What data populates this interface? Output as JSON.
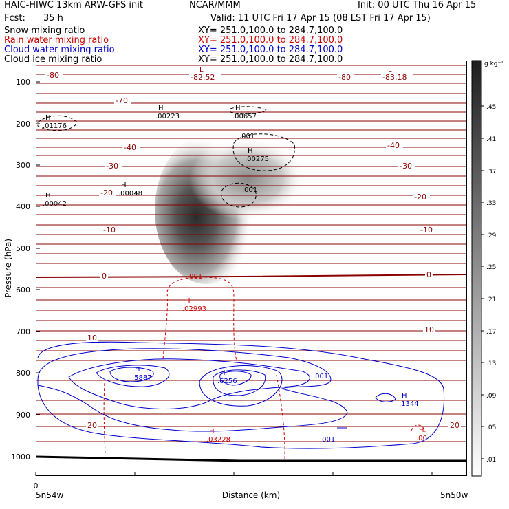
{
  "header": {
    "model": "HAIC-HIWC 13km ARW-GFS init",
    "org": "NCAR/MMM",
    "init": "Init: 00 UTC Thu 16 Apr 15",
    "fcst_label": "Fcst:",
    "fcst_value": "35 h",
    "valid": "Valid: 11 UTC Fri 17 Apr 15 (08 LST Fri 17 Apr 15)",
    "fields": [
      {
        "name": "Snow mixing ratio",
        "xy": "XY= 251.0,100.0 to 284.7,100.0",
        "color": "#000000"
      },
      {
        "name": "Rain water mixing ratio",
        "xy": "XY= 251.0,100.0 to 284.7,100.0",
        "color": "#cc0000"
      },
      {
        "name": "Cloud water mixing ratio",
        "xy": "XY= 251.0,100.0 to 284.7,100.0",
        "color": "#0000cc"
      },
      {
        "name": "Cloud ice mixing ratio",
        "xy": "XY= 251.0,100.0 to 284.7,100.0",
        "color": "#000000"
      }
    ]
  },
  "chart_data": {
    "type": "contour cross-section",
    "ylabel": "Pressure (hPa)",
    "xlabel": "Distance (km)",
    "x_left_label": "5n54w",
    "x_right_label": "5n50w",
    "x_zero_label": "0",
    "yticks": [
      "100",
      "200",
      "300",
      "400",
      "500",
      "600",
      "700",
      "800",
      "900",
      "1000"
    ],
    "colorbar_unit": "g kg⁻¹",
    "colorbar_labels": [
      ".45",
      ".41",
      ".37",
      ".33",
      ".29",
      ".25",
      ".21",
      ".17",
      ".13",
      ".09",
      ".05",
      ".01"
    ],
    "temperature_labels": [
      "-80",
      "-82.52",
      "-80",
      "-83.18",
      "-70",
      "-40",
      "-40",
      "-30",
      "-30",
      "-20",
      "-20",
      "-10",
      "-10",
      "0",
      "0",
      "10",
      "10",
      "20",
      "20"
    ],
    "maxima": [
      {
        "letter": "H",
        "value": ".01176",
        "color": "#000000"
      },
      {
        "letter": "H",
        "value": ".00223",
        "color": "#000000"
      },
      {
        "letter": "H",
        "value": ".00657",
        "color": "#000000"
      },
      {
        "letter": "H",
        "value": ".00275",
        "color": "#000000"
      },
      {
        "letter": "H",
        "value": ".00048",
        "color": "#000000"
      },
      {
        "letter": "H",
        "value": ".00042",
        "color": "#000000"
      },
      {
        "letter": "H",
        "value": ".02993",
        "color": "#cc0000"
      },
      {
        "letter": "H",
        "value": ".5887",
        "color": "#0000cc"
      },
      {
        "letter": "H",
        "value": ".6256",
        "color": "#0000cc"
      },
      {
        "letter": "H",
        "value": ".1344",
        "color": "#0000cc"
      },
      {
        "letter": "H",
        "value": ".03228",
        "color": "#cc0000"
      },
      {
        "letter": "H",
        "value": ".00",
        "color": "#cc0000"
      },
      {
        "letter": "L",
        "value": "",
        "color": "#8b0000"
      },
      {
        "letter": "L",
        "value": "",
        "color": "#8b0000"
      }
    ],
    "contour_labels": [
      {
        "text": ".001",
        "color": "#000000"
      },
      {
        "text": ".001",
        "color": "#000000"
      },
      {
        "text": ".001",
        "color": "#cc0000"
      },
      {
        "text": ".001",
        "color": "#0000cc"
      },
      {
        "text": ".001",
        "color": "#0000cc"
      }
    ]
  }
}
